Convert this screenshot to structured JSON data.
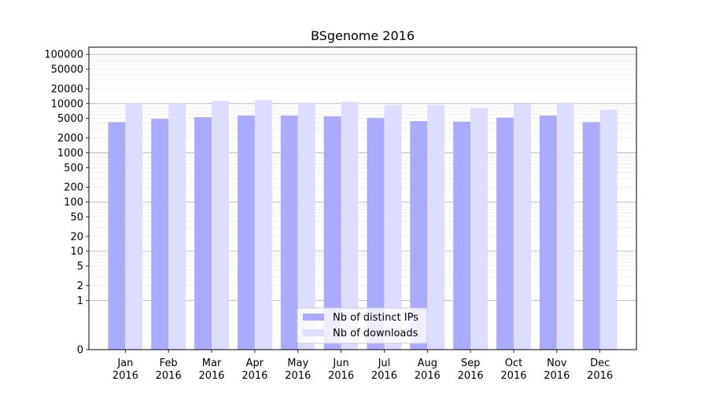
{
  "chart_data": {
    "type": "bar",
    "title": "BSgenome 2016",
    "xlabel": "",
    "ylabel": "",
    "y_scale": "symlog",
    "ylim": [
      0,
      140000
    ],
    "y_ticks": [
      0,
      1,
      2,
      5,
      10,
      20,
      50,
      100,
      200,
      500,
      1000,
      2000,
      5000,
      10000,
      20000,
      50000,
      100000
    ],
    "y_tick_labels": [
      "0",
      "1",
      "2",
      "5",
      "10",
      "20",
      "50",
      "100",
      "200",
      "500",
      "1000",
      "2000",
      "5000",
      "10000",
      "20000",
      "50000",
      "100000"
    ],
    "grid": true,
    "categories": [
      "Jan",
      "Feb",
      "Mar",
      "Apr",
      "May",
      "Jun",
      "Jul",
      "Aug",
      "Sep",
      "Oct",
      "Nov",
      "Dec"
    ],
    "category_year": "2016",
    "series": [
      {
        "name": "Nb of distinct IPs",
        "color": "#aaaaff",
        "values": [
          4200,
          4900,
          5300,
          5700,
          5700,
          5500,
          5100,
          4400,
          4300,
          5200,
          5700,
          4200
        ]
      },
      {
        "name": "Nb of downloads",
        "color": "#ddddff",
        "values": [
          10300,
          10300,
          11300,
          11800,
          10500,
          10900,
          9400,
          9400,
          8300,
          9700,
          10500,
          7500
        ]
      }
    ],
    "legend_position": "lower-center"
  }
}
